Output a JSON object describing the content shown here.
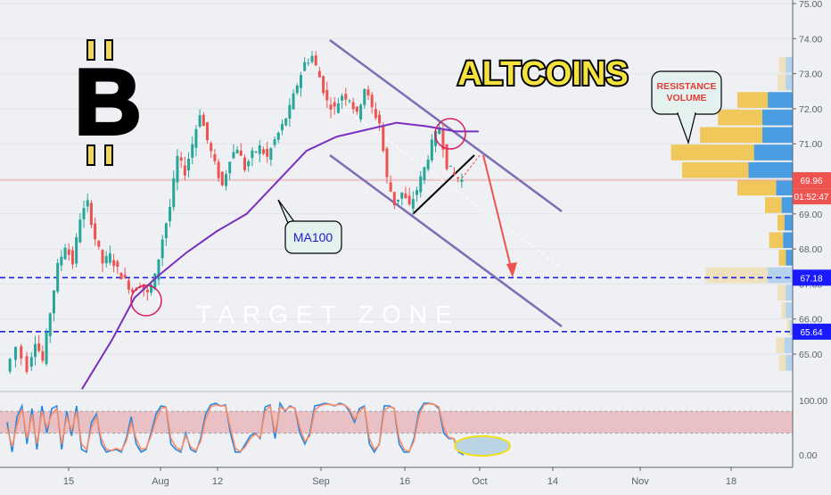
{
  "chart_data": [
    {
      "type": "candlestick",
      "title": "ALTCOINS",
      "logo_text": "B",
      "y_axis": {
        "ticks": [
          "75.00",
          "74.00",
          "73.00",
          "72.00",
          "71.00",
          "70.00",
          "69.00",
          "68.00",
          "67.00",
          "66.00",
          "65.00"
        ],
        "ylim": [
          64.25,
          75.1
        ],
        "position": "right"
      },
      "x_axis": {
        "ticks": [
          "15",
          "Aug",
          "12",
          "Sep",
          "16",
          "Oct",
          "14",
          "Nov",
          "18"
        ]
      },
      "price_labels": [
        {
          "label": "69.96",
          "value": 69.96,
          "color": "#ef5350"
        },
        {
          "label": "01:52:47",
          "value": 69.5,
          "color": "#ef5350"
        },
        {
          "label": "67.18",
          "value": 67.18,
          "color": "#1a1aff"
        },
        {
          "label": "65.64",
          "value": 65.64,
          "color": "#1a1aff"
        }
      ],
      "levels": [
        {
          "value": 67.18,
          "style": "dashed",
          "color": "#2020e0"
        },
        {
          "value": 65.64,
          "style": "dashed",
          "color": "#2020e0"
        },
        {
          "value": 69.96,
          "style": "solid-thin",
          "color": "#ef9a9a"
        }
      ],
      "annotations": {
        "target_zone": "TARGET ZONE",
        "ma_label": "MA100",
        "resistance_label_line1": "RESISTANCE",
        "resistance_label_line2": "VOLUME"
      },
      "price_path": [
        [
          0,
          64.5
        ],
        [
          3,
          65.2
        ],
        [
          6,
          64.6
        ],
        [
          8,
          65.4
        ],
        [
          10,
          64.8
        ],
        [
          12,
          66.2
        ],
        [
          14,
          67.5
        ],
        [
          16,
          68.1
        ],
        [
          18,
          67.6
        ],
        [
          20,
          68.9
        ],
        [
          22,
          69.3
        ],
        [
          24,
          68.3
        ],
        [
          26,
          67.6
        ],
        [
          28,
          67.8
        ],
        [
          30,
          67.4
        ],
        [
          32,
          67.1
        ],
        [
          34,
          66.8
        ],
        [
          36,
          67.0
        ],
        [
          38,
          66.7
        ],
        [
          40,
          67.2
        ],
        [
          42,
          68.3
        ],
        [
          44,
          69.2
        ],
        [
          46,
          70.6
        ],
        [
          48,
          70.2
        ],
        [
          50,
          71.0
        ],
        [
          52,
          71.9
        ],
        [
          54,
          71.1
        ],
        [
          56,
          70.4
        ],
        [
          58,
          69.8
        ],
        [
          60,
          70.6
        ],
        [
          62,
          70.9
        ],
        [
          64,
          70.3
        ],
        [
          66,
          70.7
        ],
        [
          68,
          70.9
        ],
        [
          70,
          70.6
        ],
        [
          72,
          71.1
        ],
        [
          74,
          71.5
        ],
        [
          76,
          72.0
        ],
        [
          78,
          72.7
        ],
        [
          80,
          73.3
        ],
        [
          82,
          73.5
        ],
        [
          84,
          72.9
        ],
        [
          86,
          72.2
        ],
        [
          88,
          72.0
        ],
        [
          90,
          72.4
        ],
        [
          92,
          72.3
        ],
        [
          94,
          71.8
        ],
        [
          96,
          72.6
        ],
        [
          98,
          72.0
        ],
        [
          100,
          71.6
        ],
        [
          102,
          70.0
        ],
        [
          104,
          69.3
        ],
        [
          106,
          69.6
        ],
        [
          108,
          69.2
        ],
        [
          110,
          69.7
        ],
        [
          112,
          70.3
        ],
        [
          114,
          71.0
        ],
        [
          116,
          71.5
        ],
        [
          118,
          70.4
        ],
        [
          120,
          70.1
        ],
        [
          122,
          69.96
        ]
      ],
      "ma100": [
        [
          20,
          64.0
        ],
        [
          28,
          65.4
        ],
        [
          34,
          66.6
        ],
        [
          40,
          67.2
        ],
        [
          48,
          67.9
        ],
        [
          56,
          68.5
        ],
        [
          64,
          69.0
        ],
        [
          72,
          69.9
        ],
        [
          80,
          70.8
        ],
        [
          88,
          71.2
        ],
        [
          96,
          71.4
        ],
        [
          104,
          71.6
        ],
        [
          112,
          71.5
        ],
        [
          120,
          71.35
        ],
        [
          126,
          71.35
        ]
      ],
      "volume_profile": [
        {
          "price": 73.25,
          "up": 0.05,
          "down": 0.05,
          "faded": true
        },
        {
          "price": 72.75,
          "up": 0.06,
          "down": 0.05,
          "faded": true
        },
        {
          "price": 72.25,
          "up": 0.22,
          "down": 0.18,
          "faded": false
        },
        {
          "price": 71.75,
          "up": 0.32,
          "down": 0.22,
          "faded": false
        },
        {
          "price": 71.25,
          "up": 0.45,
          "down": 0.22,
          "faded": false
        },
        {
          "price": 70.75,
          "up": 0.6,
          "down": 0.28,
          "faded": false
        },
        {
          "price": 70.25,
          "up": 0.48,
          "down": 0.32,
          "faded": false
        },
        {
          "price": 69.75,
          "up": 0.28,
          "down": 0.12,
          "faded": false
        },
        {
          "price": 69.25,
          "up": 0.12,
          "down": 0.08,
          "faded": false
        },
        {
          "price": 68.75,
          "up": 0.05,
          "down": 0.06,
          "faded": false
        },
        {
          "price": 68.25,
          "up": 0.1,
          "down": 0.07,
          "faded": false
        },
        {
          "price": 67.75,
          "up": 0.05,
          "down": 0.05,
          "faded": false
        },
        {
          "price": 67.25,
          "up": 0.45,
          "down": 0.18,
          "faded": true
        },
        {
          "price": 66.75,
          "up": 0.06,
          "down": 0.05,
          "faded": true
        },
        {
          "price": 66.25,
          "up": 0.03,
          "down": 0.05,
          "faded": true
        },
        {
          "price": 65.75,
          "up": 0.02,
          "down": 0.02,
          "faded": true
        },
        {
          "price": 65.25,
          "up": 0.06,
          "down": 0.06,
          "faded": true
        },
        {
          "price": 64.75,
          "up": 0.05,
          "down": 0.05,
          "faded": true
        }
      ]
    },
    {
      "type": "line",
      "name": "stochastic",
      "y_ticks": [
        "100.00",
        "0.00"
      ],
      "ylim": [
        -5,
        105
      ],
      "band": [
        40,
        80
      ],
      "series": [
        {
          "color": "#1e88e5",
          "values": [
            60,
            5,
            70,
            90,
            20,
            85,
            10,
            90,
            40,
            85,
            90,
            10,
            80,
            35,
            90,
            10,
            5,
            60,
            75,
            20,
            5,
            8,
            10,
            5,
            30,
            70,
            20,
            5,
            10,
            40,
            75,
            90,
            88,
            20,
            10,
            5,
            40,
            10,
            5,
            30,
            75,
            92,
            95,
            90,
            92,
            40,
            5,
            5,
            20,
            35,
            40,
            30,
            88,
            92,
            30,
            95,
            80,
            90,
            85,
            40,
            20,
            40,
            90,
            92,
            95,
            93,
            90,
            95,
            92,
            80,
            60,
            85,
            90,
            20,
            5,
            20,
            90,
            90,
            85,
            20,
            5,
            5,
            30,
            80,
            95,
            95,
            93,
            85,
            40,
            30,
            30,
            5,
            0
          ]
        },
        {
          "color": "#ff8a65",
          "values": [
            50,
            15,
            55,
            85,
            30,
            75,
            20,
            80,
            50,
            75,
            85,
            20,
            70,
            45,
            80,
            20,
            10,
            50,
            70,
            30,
            10,
            8,
            12,
            8,
            25,
            60,
            30,
            10,
            12,
            35,
            65,
            85,
            88,
            30,
            15,
            8,
            35,
            15,
            8,
            25,
            65,
            88,
            92,
            90,
            90,
            50,
            12,
            6,
            15,
            30,
            38,
            32,
            80,
            90,
            40,
            88,
            82,
            88,
            86,
            50,
            25,
            35,
            82,
            90,
            93,
            93,
            91,
            93,
            92,
            84,
            65,
            80,
            88,
            30,
            10,
            18,
            82,
            88,
            86,
            30,
            10,
            6,
            25,
            72,
            92,
            94,
            93,
            88,
            50,
            32,
            30,
            12,
            2
          ]
        }
      ]
    }
  ]
}
